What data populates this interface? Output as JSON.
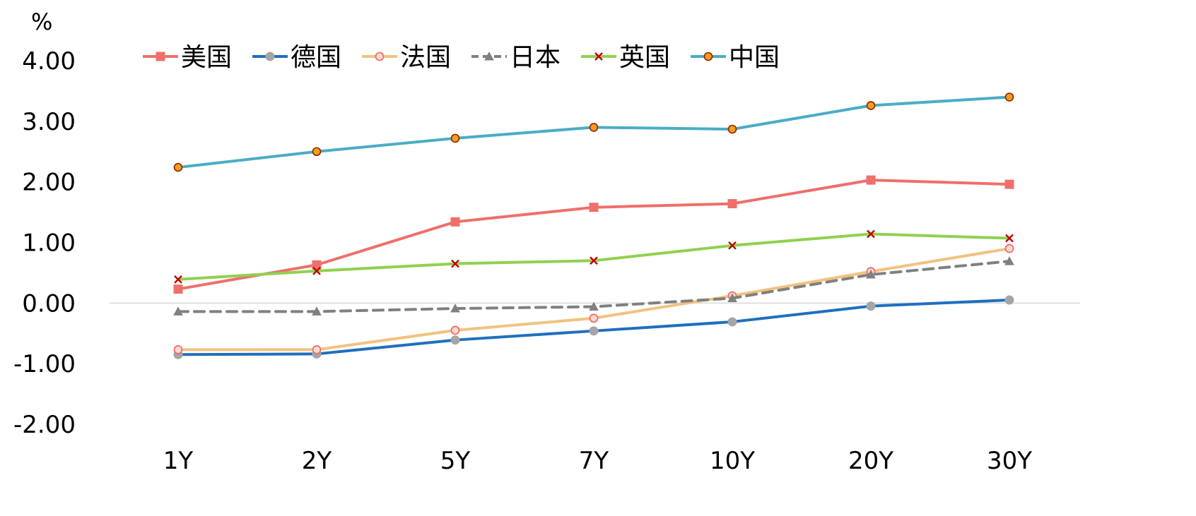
{
  "chart_data": {
    "type": "line",
    "title": "",
    "unit_label": "%",
    "xlabel": "",
    "ylabel": "",
    "categories": [
      "1Y",
      "2Y",
      "5Y",
      "7Y",
      "10Y",
      "20Y",
      "30Y"
    ],
    "ylim": [
      -2.0,
      4.0
    ],
    "yticks": [
      4.0,
      3.0,
      2.0,
      1.0,
      0.0,
      -1.0,
      -2.0
    ],
    "ytick_labels": [
      "4.00",
      "3.00",
      "2.00",
      "1.00",
      "0.00",
      "-1.00",
      "-2.00"
    ],
    "grid": false,
    "legend_position": "top",
    "series": [
      {
        "name": "美国",
        "color": "#EF6F6A",
        "marker": "square",
        "dash": false,
        "marker_fill": "#EF6F6A",
        "marker_stroke": "#EF6F6A",
        "values": [
          0.23,
          0.63,
          1.34,
          1.58,
          1.64,
          2.03,
          1.96
        ]
      },
      {
        "name": "德国",
        "color": "#1F6FBF",
        "marker": "circle",
        "dash": false,
        "marker_fill": "#A5A5A5",
        "marker_stroke": "#A5A5A5",
        "values": [
          -0.85,
          -0.84,
          -0.61,
          -0.46,
          -0.31,
          -0.05,
          0.05
        ]
      },
      {
        "name": "法国",
        "color": "#F2C27E",
        "marker": "circle-open",
        "dash": false,
        "marker_fill": "#FBD9D3",
        "marker_stroke": "#EF6F6A",
        "values": [
          -0.77,
          -0.77,
          -0.45,
          -0.25,
          0.12,
          0.52,
          0.9
        ]
      },
      {
        "name": "日本",
        "color": "#808080",
        "marker": "triangle",
        "dash": true,
        "marker_fill": "#808080",
        "marker_stroke": "#808080",
        "values": [
          -0.14,
          -0.14,
          -0.09,
          -0.06,
          0.08,
          0.47,
          0.69
        ]
      },
      {
        "name": "英国",
        "color": "#8FD14F",
        "marker": "x",
        "dash": false,
        "marker_fill": "#C00000",
        "marker_stroke": "#C00000",
        "values": [
          0.39,
          0.53,
          0.65,
          0.7,
          0.95,
          1.14,
          1.07
        ]
      },
      {
        "name": "中国",
        "color": "#4BACC6",
        "marker": "circle-filled",
        "dash": false,
        "marker_fill": "#F59B1E",
        "marker_stroke": "#8B2500",
        "values": [
          2.24,
          2.5,
          2.72,
          2.9,
          2.87,
          3.26,
          3.4
        ]
      }
    ]
  }
}
